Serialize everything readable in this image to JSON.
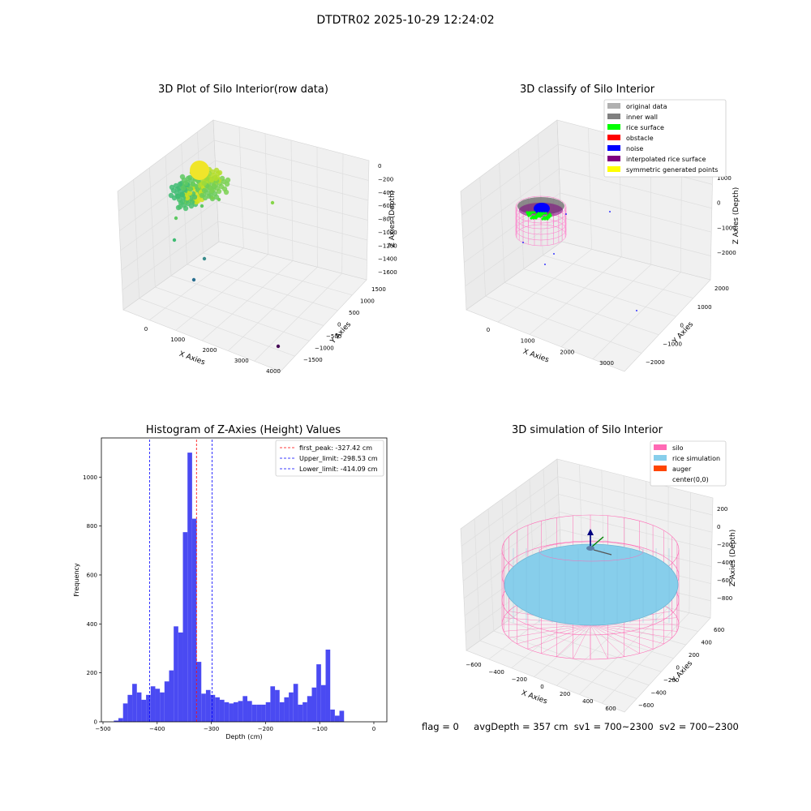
{
  "figure": {
    "suptitle": "DTDTR02 2025-10-29 12:24:02",
    "footer": {
      "flag": "flag = 0",
      "avg_depth": "avgDepth = 357 cm",
      "sv1": "sv1 = 700~2300",
      "sv2": "sv2 = 700~2300"
    }
  },
  "chart_data": [
    {
      "id": "raw",
      "type": "scatter",
      "title": "3D Plot of Silo Interior(row data)",
      "xlabel": "X Axies",
      "ylabel": "Y Axies",
      "zlabel": "Z Axies (Depth)",
      "x_ticks": [
        "0",
        "1000",
        "2000",
        "3000",
        "4000"
      ],
      "y_ticks": [
        "1500",
        "1000",
        "500",
        "0",
        "−500",
        "−1000",
        "−1500"
      ],
      "z_ticks": [
        "0",
        "−200",
        "−400",
        "−600",
        "−800",
        "−1000",
        "−1200",
        "−1400",
        "−1600"
      ],
      "colormap": "viridis",
      "grid": true
    },
    {
      "id": "classify",
      "type": "scatter",
      "title": "3D classify of Silo Interior",
      "xlabel": "X Axies",
      "ylabel": "Y Axies",
      "zlabel": "Z Axies (Depth)",
      "x_ticks": [
        "0",
        "1000",
        "2000",
        "3000"
      ],
      "y_ticks": [
        "2000",
        "1000",
        "0",
        "−1000",
        "−2000"
      ],
      "z_ticks": [
        "1000",
        "0",
        "−1000",
        "−2000"
      ],
      "legend_position": "top-right",
      "legend": [
        {
          "label": "original data",
          "color": "#b0b0b0"
        },
        {
          "label": "inner wall",
          "color": "#808080"
        },
        {
          "label": "rice surface",
          "color": "#00ff00"
        },
        {
          "label": "obstacle",
          "color": "#ff0000"
        },
        {
          "label": "noise",
          "color": "#0000ff"
        },
        {
          "label": "interpolated rice surface",
          "color": "#800080"
        },
        {
          "label": "symmetric generated points",
          "color": "#ffff00"
        }
      ],
      "grid": true
    },
    {
      "id": "hist",
      "type": "bar",
      "title": "Histogram of Z-Axies (Height) Values",
      "xlabel": "Depth (cm)",
      "ylabel": "Frequency",
      "xlim": [
        -503,
        24
      ],
      "ylim": [
        0,
        1160
      ],
      "x_ticks": [
        -500,
        -400,
        -300,
        -200,
        -100,
        0
      ],
      "y_ticks": [
        0,
        200,
        400,
        600,
        800,
        1000
      ],
      "bar_color": "#4a4af2",
      "bin_start": -480,
      "bin_width": 8.5,
      "values": [
        5,
        15,
        75,
        110,
        155,
        120,
        90,
        110,
        145,
        135,
        120,
        165,
        210,
        390,
        365,
        775,
        1100,
        830,
        245,
        115,
        130,
        110,
        100,
        90,
        80,
        75,
        80,
        85,
        105,
        85,
        70,
        70,
        70,
        80,
        145,
        130,
        80,
        100,
        120,
        155,
        70,
        80,
        105,
        140,
        235,
        150,
        295,
        50,
        25,
        45
      ],
      "lines": [
        {
          "name": "first_peak",
          "label": "first_peak: -327.42 cm",
          "x": -327.42,
          "color": "#ff0000"
        },
        {
          "name": "upper-limit",
          "label": "Upper_limit: -298.53 cm",
          "x": -298.53,
          "color": "#0000ff"
        },
        {
          "name": "lower-limit",
          "label": "Lower_limit: -414.09 cm",
          "x": -414.09,
          "color": "#0000ff"
        }
      ],
      "legend_position": "top-right",
      "grid": false
    },
    {
      "id": "sim",
      "type": "scatter",
      "title": "3D simulation of Silo Interior",
      "xlabel": "X Axies",
      "ylabel": "Y Axies",
      "zlabel": "Z Axies (Depth)",
      "x_ticks": [
        "−600",
        "−400",
        "−200",
        "0",
        "200",
        "400",
        "600"
      ],
      "y_ticks": [
        "600",
        "400",
        "200",
        "0",
        "−200",
        "−400",
        "−600"
      ],
      "z_ticks": [
        "200",
        "0",
        "−200",
        "−400",
        "−600",
        "−800"
      ],
      "legend_position": "top-right",
      "legend": [
        {
          "label": "silo",
          "color": "#ff69b4"
        },
        {
          "label": "rice simulation",
          "color": "#87ceeb"
        },
        {
          "label": "auger",
          "color": "#ff4500"
        },
        {
          "label": "center(0,0)",
          "color": "#ffffff"
        }
      ],
      "grid": true
    }
  ]
}
